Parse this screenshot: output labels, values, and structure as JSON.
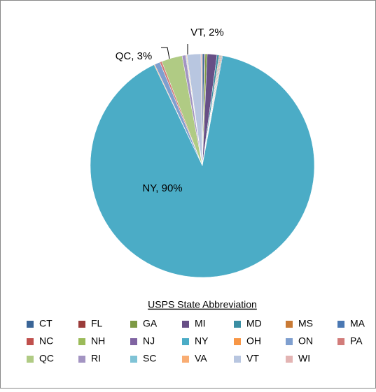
{
  "chart_data": {
    "type": "pie",
    "legend_title": "USPS State Abbreviation",
    "categories": [
      "CT",
      "FL",
      "GA",
      "MI",
      "MD",
      "MS",
      "MA",
      "NC",
      "NH",
      "NJ",
      "NY",
      "OH",
      "ON",
      "PA",
      "QC",
      "RI",
      "SC",
      "VA",
      "VT",
      "WI"
    ],
    "values": [
      0.3,
      0.1,
      0.3,
      1.4,
      0.3,
      0.1,
      0.1,
      0.1,
      0.1,
      0.1,
      90,
      0.1,
      0.8,
      0.3,
      3,
      0.5,
      0.1,
      0.1,
      2,
      0.2
    ],
    "value_labels": [
      null,
      null,
      null,
      null,
      null,
      null,
      null,
      null,
      null,
      null,
      "NY, 90%",
      null,
      null,
      null,
      "QC, 3%",
      null,
      null,
      null,
      "VT, 2%",
      null
    ],
    "colors": [
      "#3a6597",
      "#9b3c3a",
      "#7d9a45",
      "#674f86",
      "#3a8ea3",
      "#c97a35",
      "#4a78b3",
      "#c0504d",
      "#9bbb59",
      "#8064a2",
      "#4bacc6",
      "#f79646",
      "#7f9fcf",
      "#d27c7a",
      "#b0cb84",
      "#a394c2",
      "#7fc3d6",
      "#f9ad73",
      "#b8c6e0",
      "#e3b4b3"
    ],
    "legend": "bottom"
  }
}
